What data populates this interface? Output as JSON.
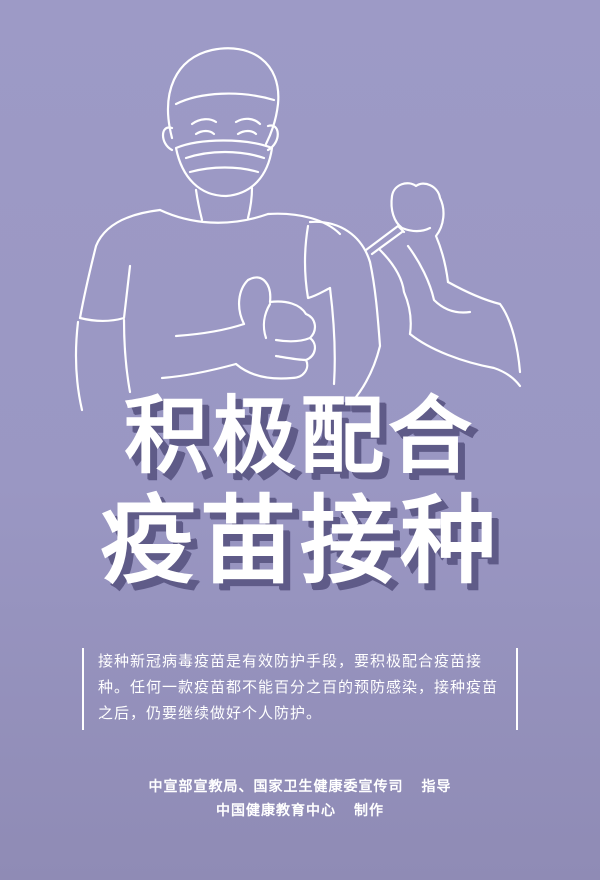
{
  "headline": {
    "line1": "积极配合",
    "line2": "疫苗接种"
  },
  "body": {
    "text": "接种新冠病毒疫苗是有效防护手段，要积极配合疫苗接种。任何一款疫苗都不能百分之百的预防感染，接种疫苗之后，仍要继续做好个人防护。"
  },
  "credits": {
    "guidance_org": "中宣部宣教局、国家卫生健康委宣传司",
    "guidance_label": "指导",
    "producer_org": "中国健康教育中心",
    "producer_label": "制作"
  },
  "colors": {
    "background": "#9d9ac6",
    "text": "#ffffff",
    "shadow": "#5f5b88"
  }
}
